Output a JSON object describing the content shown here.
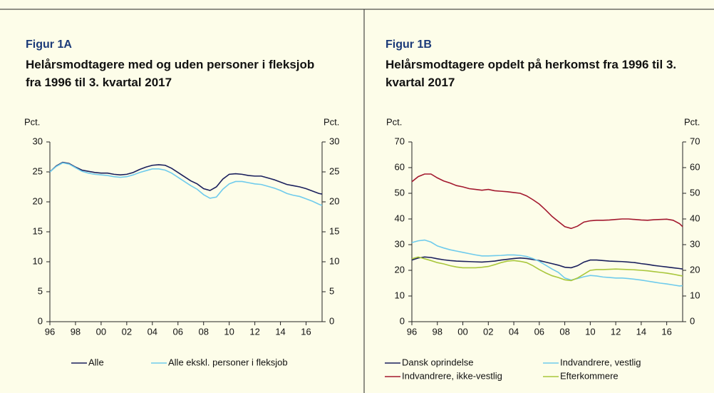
{
  "chart_data": [
    {
      "type": "line",
      "label": "Figur 1A",
      "title": "Helårsmodtagere med og uden personer i fleksjob fra 1996 til 3. kvartal 2017",
      "y_label": "Pct.",
      "y2_label": "Pct.",
      "x": [
        1996,
        1996.5,
        1997,
        1997.5,
        1998,
        1998.5,
        1999,
        1999.5,
        2000,
        2000.5,
        2001,
        2001.5,
        2002,
        2002.5,
        2003,
        2003.5,
        2004,
        2004.5,
        2005,
        2005.5,
        2006,
        2006.5,
        2007,
        2007.5,
        2008,
        2008.5,
        2009,
        2009.5,
        2010,
        2010.5,
        2011,
        2011.5,
        2012,
        2012.5,
        2013,
        2013.5,
        2014,
        2014.5,
        2015,
        2015.5,
        2016,
        2016.5,
        2017,
        2017.25
      ],
      "xlim": [
        1996,
        2017.25
      ],
      "xticks": [
        {
          "value": 1996,
          "label": "96"
        },
        {
          "value": 1998,
          "label": "98"
        },
        {
          "value": 2000,
          "label": "00"
        },
        {
          "value": 2002,
          "label": "02"
        },
        {
          "value": 2004,
          "label": "04"
        },
        {
          "value": 2006,
          "label": "06"
        },
        {
          "value": 2008,
          "label": "08"
        },
        {
          "value": 2010,
          "label": "10"
        },
        {
          "value": 2012,
          "label": "12"
        },
        {
          "value": 2014,
          "label": "14"
        },
        {
          "value": 2016,
          "label": "16"
        }
      ],
      "ylim": [
        0,
        30
      ],
      "yticks": [
        0,
        5,
        10,
        15,
        20,
        25,
        30
      ],
      "y2lim": [
        0,
        30
      ],
      "y2ticks": [
        0,
        5,
        10,
        15,
        20,
        25,
        30
      ],
      "series": [
        {
          "name": "Alle",
          "color": "#1a1f5c",
          "values": [
            25.0,
            26.0,
            26.6,
            26.4,
            25.8,
            25.3,
            25.1,
            24.9,
            24.8,
            24.8,
            24.6,
            24.5,
            24.6,
            24.9,
            25.4,
            25.8,
            26.1,
            26.2,
            26.1,
            25.6,
            24.9,
            24.2,
            23.5,
            23.0,
            22.2,
            21.9,
            22.5,
            23.8,
            24.6,
            24.7,
            24.6,
            24.4,
            24.3,
            24.3,
            24.0,
            23.7,
            23.3,
            22.9,
            22.7,
            22.5,
            22.2,
            21.8,
            21.4,
            21.3
          ]
        },
        {
          "name": "Alle ekskl. personer i fleksjob",
          "color": "#6fcbec",
          "values": [
            25.0,
            25.9,
            26.5,
            26.3,
            25.7,
            25.1,
            24.8,
            24.6,
            24.5,
            24.4,
            24.2,
            24.1,
            24.2,
            24.5,
            24.9,
            25.2,
            25.5,
            25.5,
            25.3,
            24.8,
            24.1,
            23.4,
            22.7,
            22.1,
            21.2,
            20.6,
            20.8,
            22.1,
            23.0,
            23.4,
            23.4,
            23.2,
            23.0,
            22.9,
            22.6,
            22.3,
            21.9,
            21.4,
            21.1,
            20.9,
            20.5,
            20.1,
            19.6,
            19.4
          ]
        }
      ]
    },
    {
      "type": "line",
      "label": "Figur 1B",
      "title": "Helårsmodtagere opdelt på herkomst fra 1996 til 3. kvartal 2017",
      "y_label": "Pct.",
      "y2_label": "Pct.",
      "x": [
        1996,
        1996.5,
        1997,
        1997.5,
        1998,
        1998.5,
        1999,
        1999.5,
        2000,
        2000.5,
        2001,
        2001.5,
        2002,
        2002.5,
        2003,
        2003.5,
        2004,
        2004.5,
        2005,
        2005.5,
        2006,
        2006.5,
        2007,
        2007.5,
        2008,
        2008.5,
        2009,
        2009.5,
        2010,
        2010.5,
        2011,
        2011.5,
        2012,
        2012.5,
        2013,
        2013.5,
        2014,
        2014.5,
        2015,
        2015.5,
        2016,
        2016.5,
        2017,
        2017.25
      ],
      "xlim": [
        1996,
        2017.25
      ],
      "xticks": [
        {
          "value": 1996,
          "label": "96"
        },
        {
          "value": 1998,
          "label": "98"
        },
        {
          "value": 2000,
          "label": "00"
        },
        {
          "value": 2002,
          "label": "02"
        },
        {
          "value": 2004,
          "label": "04"
        },
        {
          "value": 2006,
          "label": "06"
        },
        {
          "value": 2008,
          "label": "08"
        },
        {
          "value": 2010,
          "label": "10"
        },
        {
          "value": 2012,
          "label": "12"
        },
        {
          "value": 2014,
          "label": "14"
        },
        {
          "value": 2016,
          "label": "16"
        }
      ],
      "ylim": [
        0,
        70
      ],
      "yticks": [
        0,
        10,
        20,
        30,
        40,
        50,
        60,
        70
      ],
      "y2lim": [
        0,
        70
      ],
      "y2ticks": [
        0,
        10,
        20,
        30,
        40,
        50,
        60,
        70
      ],
      "series": [
        {
          "name": "Dansk oprindelse",
          "color": "#1a1f5c",
          "values": [
            24,
            24.8,
            25.2,
            25,
            24.5,
            24.1,
            23.8,
            23.6,
            23.5,
            23.4,
            23.3,
            23.2,
            23.4,
            23.6,
            24,
            24.3,
            24.6,
            24.8,
            24.6,
            24.2,
            23.8,
            23.2,
            22.6,
            22,
            21.2,
            21,
            21.8,
            23.2,
            24,
            24,
            23.8,
            23.6,
            23.5,
            23.4,
            23.2,
            23,
            22.6,
            22.3,
            21.9,
            21.6,
            21.3,
            21,
            20.7,
            20.5
          ]
        },
        {
          "name": "Indvandrere, vestlig",
          "color": "#6fcbec",
          "values": [
            30.8,
            31.5,
            31.8,
            31,
            29.5,
            28.7,
            28,
            27.5,
            27,
            26.5,
            26,
            25.6,
            25.6,
            25.7,
            25.8,
            26,
            26,
            25.8,
            25.4,
            24.6,
            23.5,
            22,
            20.5,
            19.2,
            17,
            16.2,
            16.8,
            17.5,
            18,
            17.8,
            17.4,
            17.2,
            17,
            17,
            16.8,
            16.5,
            16.2,
            15.8,
            15.4,
            15,
            14.7,
            14.3,
            13.9,
            14
          ]
        },
        {
          "name": "Indvandrere, ikke-vestlig",
          "color": "#a3182e",
          "values": [
            54.5,
            56.5,
            57.5,
            57.5,
            56,
            54.8,
            54,
            53,
            52.5,
            51.8,
            51.5,
            51.2,
            51.5,
            51,
            50.8,
            50.6,
            50.3,
            50,
            49,
            47.5,
            45.8,
            43.5,
            41,
            39,
            37,
            36.3,
            37.2,
            38.8,
            39.3,
            39.5,
            39.5,
            39.6,
            39.8,
            40,
            40,
            39.8,
            39.6,
            39.5,
            39.7,
            39.8,
            39.9,
            39.5,
            38.2,
            37
          ]
        },
        {
          "name": "Efterkommere",
          "color": "#a9c73c",
          "values": [
            24.5,
            25.2,
            24.5,
            23.8,
            23,
            22.5,
            21.8,
            21.3,
            21,
            21,
            21,
            21.2,
            21.5,
            22.2,
            23,
            23.6,
            23.8,
            23.5,
            23,
            21.8,
            20.3,
            19,
            17.9,
            17.2,
            16.3,
            16,
            17,
            18.5,
            20,
            20.3,
            20.3,
            20.4,
            20.5,
            20.4,
            20.3,
            20.2,
            20,
            19.8,
            19.5,
            19.2,
            18.9,
            18.5,
            18,
            17.8
          ]
        }
      ]
    }
  ]
}
